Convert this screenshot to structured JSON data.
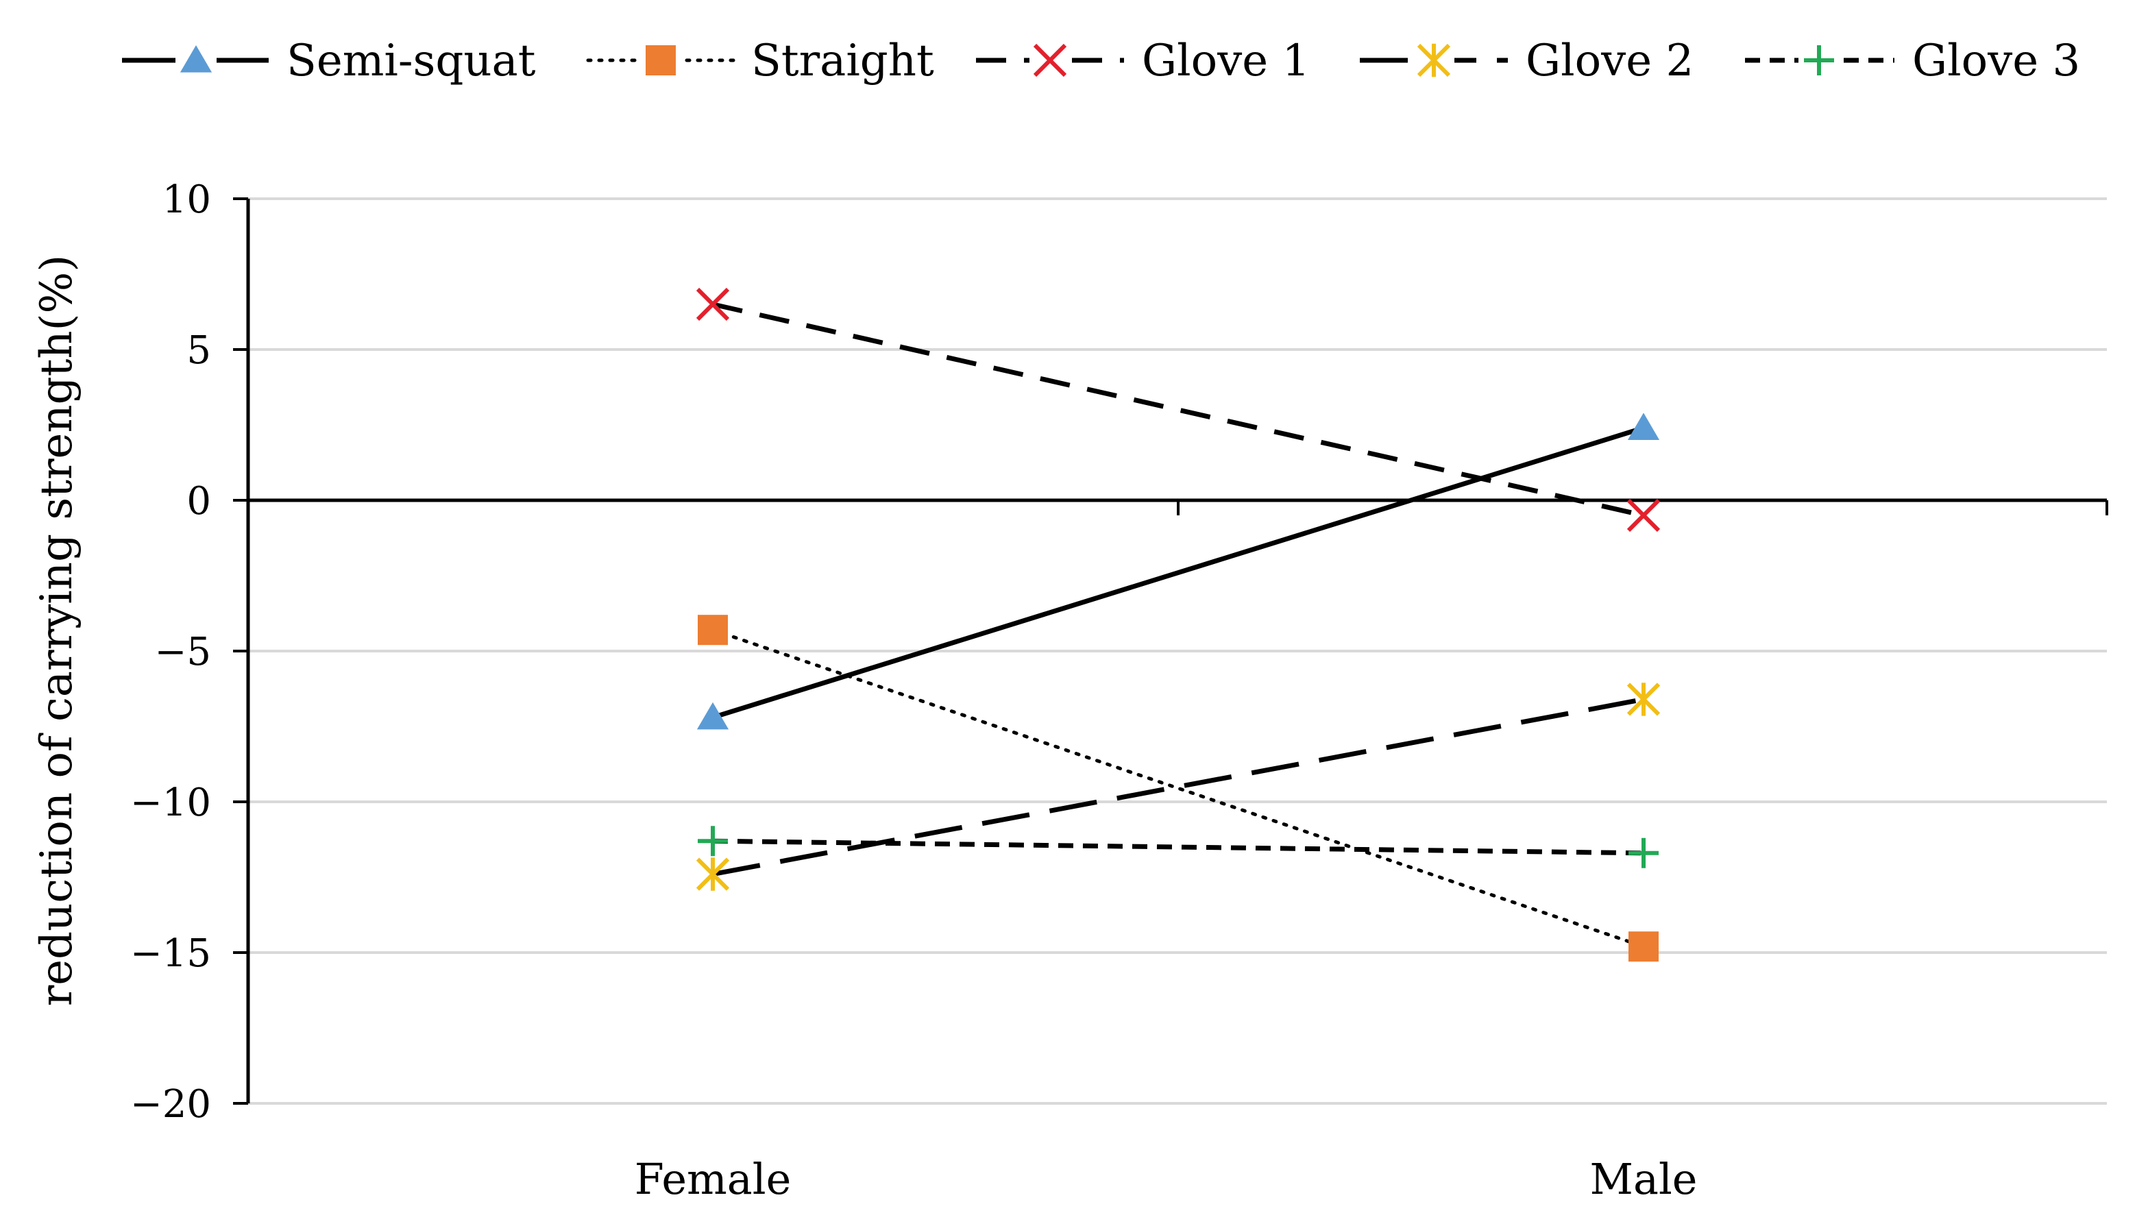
{
  "chart_data": {
    "type": "line",
    "title": "",
    "xlabel": "",
    "ylabel": "reduction of carrying strength(%)",
    "categories": [
      "Female",
      "Male"
    ],
    "ylim": [
      -20,
      10
    ],
    "yticks": [
      10,
      5,
      0,
      -5,
      -10,
      -15,
      -20
    ],
    "ytick_labels": [
      "10",
      "5",
      "0",
      "−5",
      "−10",
      "−15",
      "−20"
    ],
    "grid": true,
    "legend_position": "top",
    "series": [
      {
        "name": "Semi-squat",
        "values": [
          -7.2,
          2.4
        ],
        "marker": "triangle",
        "marker_color": "#5B9BD5",
        "line_style": "solid",
        "line_color": "#000000"
      },
      {
        "name": "Straight",
        "values": [
          -4.3,
          -14.8
        ],
        "marker": "square",
        "marker_color": "#ED7D31",
        "line_style": "dotted",
        "line_color": "#000000"
      },
      {
        "name": "Glove 1",
        "values": [
          6.5,
          -0.5
        ],
        "marker": "x",
        "marker_color": "#E3202C",
        "line_style": "dashed",
        "line_color": "#000000"
      },
      {
        "name": "Glove 2",
        "values": [
          -12.4,
          -6.6
        ],
        "marker": "star",
        "marker_color": "#F2BE16",
        "line_style": "longdash",
        "line_color": "#000000"
      },
      {
        "name": "Glove 3",
        "values": [
          -11.3,
          -11.7
        ],
        "marker": "plus",
        "marker_color": "#22A955",
        "line_style": "shortdash",
        "line_color": "#000000"
      }
    ]
  }
}
